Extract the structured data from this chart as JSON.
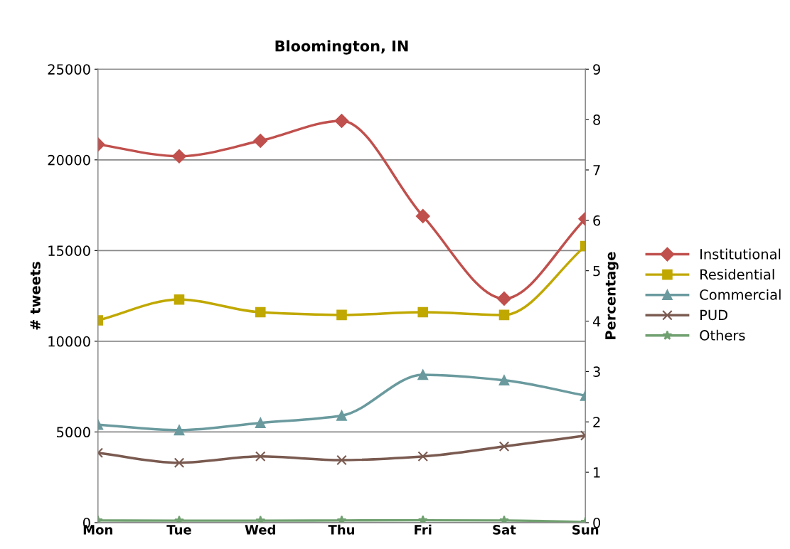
{
  "chart_data": {
    "type": "line",
    "title": "Bloomington, IN",
    "ylabel": "# tweets",
    "y2label": "Percentage",
    "categories": [
      "Mon",
      "Tue",
      "Wed",
      "Thu",
      "Fri",
      "Sat",
      "Sun"
    ],
    "series": [
      {
        "name": "Institutional",
        "color": "#c0504d",
        "marker": "diamond",
        "values": [
          20850,
          20200,
          21050,
          22150,
          16900,
          12350,
          16750
        ]
      },
      {
        "name": "Residential",
        "color": "#c0a800",
        "marker": "square",
        "values": [
          11150,
          12300,
          11600,
          11450,
          11600,
          11450,
          15250
        ]
      },
      {
        "name": "Commercial",
        "color": "#6a9a9e",
        "marker": "triangle",
        "values": [
          5400,
          5100,
          5500,
          5900,
          8150,
          7850,
          7000
        ]
      },
      {
        "name": "PUD",
        "color": "#7a5a50",
        "marker": "cross",
        "values": [
          3850,
          3300,
          3650,
          3450,
          3650,
          4200,
          4800
        ]
      },
      {
        "name": "Others",
        "color": "#70a070",
        "marker": "star",
        "values": [
          120,
          110,
          110,
          120,
          130,
          120,
          40
        ]
      }
    ],
    "ylim": [
      0,
      25000
    ],
    "yticks": [
      0,
      5000,
      10000,
      15000,
      20000,
      25000
    ],
    "y2lim": [
      0,
      9
    ],
    "y2ticks": [
      0,
      1,
      2,
      3,
      4,
      5,
      6,
      7,
      8,
      9
    ],
    "grid": "y",
    "legend": "right"
  }
}
